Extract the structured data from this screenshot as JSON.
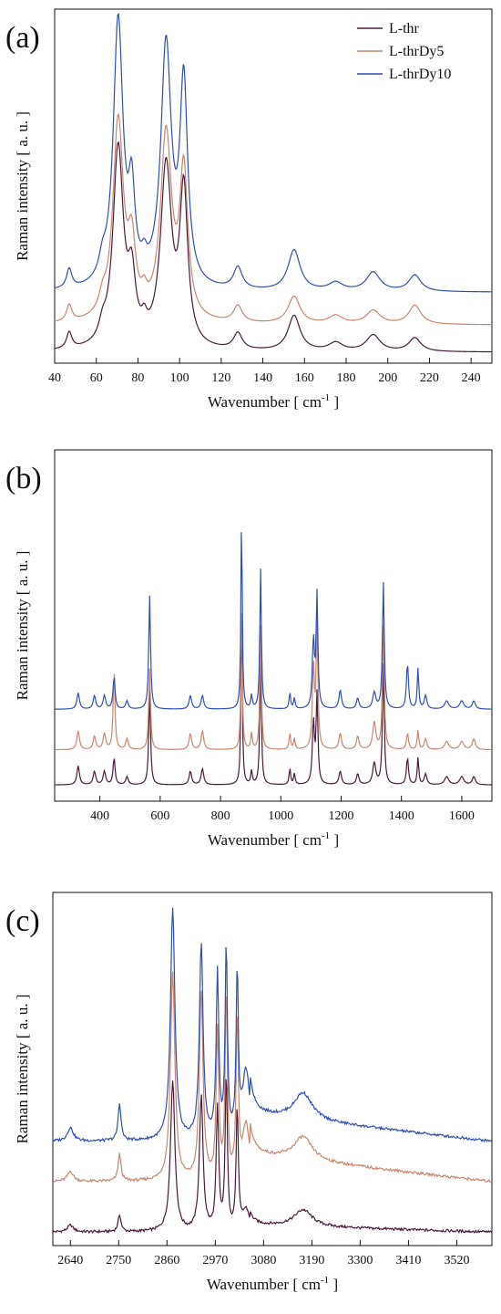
{
  "legend": [
    "L-thr",
    "L-thrDy5",
    "L-thrDy10"
  ],
  "colors": {
    "L-thr": "#4a1a3a",
    "L-thrDy5": "#c8876e",
    "L-thrDy10": "#2f4fb2"
  },
  "chart_data": [
    {
      "type": "line",
      "panel_label": "(a)",
      "xlabel": "Wavenumber [ cm-1 ]",
      "ylabel": "Raman intensity [ a. u. ]",
      "xlim": [
        40,
        250
      ],
      "xticks": [
        40,
        60,
        80,
        100,
        120,
        140,
        160,
        180,
        200,
        220,
        240
      ],
      "tick_labels": [
        "40",
        "60",
        "80",
        "100",
        "120",
        "140",
        "160",
        "180",
        "200",
        "220",
        "240"
      ],
      "legend_position": "top-right",
      "series": [
        {
          "name": "L-thr",
          "baseline": 0.04,
          "offset": 0.0,
          "peaks": [
            [
              47,
              0.06,
              1.5
            ],
            [
              63,
              0.05,
              2
            ],
            [
              70.5,
              0.73,
              3
            ],
            [
              77,
              0.22,
              2.2
            ],
            [
              83,
              0.05,
              1.5
            ],
            [
              93.5,
              0.66,
              3.2
            ],
            [
              102,
              0.56,
              2.3
            ],
            [
              128,
              0.06,
              2.5
            ],
            [
              155,
              0.13,
              3.5
            ],
            [
              175,
              0.03,
              4
            ],
            [
              193,
              0.06,
              4
            ],
            [
              213,
              0.05,
              3.5
            ]
          ]
        },
        {
          "name": "L-thrDy5",
          "baseline": 0.04,
          "offset": 0.1,
          "peaks": [
            [
              47,
              0.06,
              1.5
            ],
            [
              63,
              0.05,
              2
            ],
            [
              70.5,
              0.73,
              3
            ],
            [
              77,
              0.24,
              2.2
            ],
            [
              83,
              0.05,
              1.5
            ],
            [
              93.5,
              0.68,
              3.2
            ],
            [
              102,
              0.53,
              2.3
            ],
            [
              128,
              0.06,
              2.5
            ],
            [
              155,
              0.1,
              3.5
            ],
            [
              175,
              0.03,
              4
            ],
            [
              193,
              0.05,
              4
            ],
            [
              213,
              0.07,
              3.5
            ]
          ]
        },
        {
          "name": "L-thrDy10",
          "baseline": 0.04,
          "offset": 0.22,
          "peaks": [
            [
              47,
              0.07,
              1.5
            ],
            [
              63,
              0.06,
              2
            ],
            [
              70.5,
              0.98,
              2.8
            ],
            [
              77,
              0.3,
              1.8
            ],
            [
              83,
              0.05,
              1.5
            ],
            [
              93.5,
              0.88,
              3
            ],
            [
              102,
              0.73,
              2.2
            ],
            [
              128,
              0.08,
              2.5
            ],
            [
              155,
              0.15,
              3.5
            ],
            [
              175,
              0.03,
              4
            ],
            [
              193,
              0.07,
              4
            ],
            [
              213,
              0.06,
              3.5
            ]
          ]
        }
      ]
    },
    {
      "type": "line",
      "panel_label": "(b)",
      "xlabel": "Wavenumber [ cm-1 ]",
      "ylabel": "Raman intensity [ a. u. ]",
      "xlim": [
        250,
        1700
      ],
      "xticks": [
        400,
        600,
        800,
        1000,
        1200,
        1400,
        1600
      ],
      "tick_labels": [
        "400",
        "600",
        "800",
        "1000",
        "1200",
        "1400",
        "1600"
      ],
      "series": [
        {
          "name": "L-thr",
          "baseline": 0.06,
          "offset": 0.0,
          "peaks": [
            [
              328,
              0.07,
              5
            ],
            [
              382,
              0.05,
              5
            ],
            [
              415,
              0.05,
              5
            ],
            [
              447,
              0.1,
              4
            ],
            [
              490,
              0.03,
              5
            ],
            [
              565,
              0.35,
              3.5
            ],
            [
              700,
              0.05,
              5
            ],
            [
              740,
              0.06,
              5
            ],
            [
              870,
              0.7,
              2.5
            ],
            [
              903,
              0.05,
              3
            ],
            [
              933,
              0.5,
              3
            ],
            [
              1030,
              0.06,
              3
            ],
            [
              1045,
              0.04,
              3
            ],
            [
              1108,
              0.23,
              4
            ],
            [
              1120,
              0.33,
              3.5
            ],
            [
              1197,
              0.05,
              5
            ],
            [
              1255,
              0.04,
              5
            ],
            [
              1310,
              0.08,
              6
            ],
            [
              1340,
              0.45,
              3.5
            ],
            [
              1420,
              0.1,
              4
            ],
            [
              1455,
              0.1,
              3
            ],
            [
              1480,
              0.04,
              5
            ],
            [
              1550,
              0.03,
              8
            ],
            [
              1600,
              0.03,
              8
            ],
            [
              1640,
              0.03,
              6
            ]
          ]
        },
        {
          "name": "L-thrDy5",
          "baseline": 0.06,
          "offset": 0.13,
          "peaks": [
            [
              328,
              0.07,
              5
            ],
            [
              382,
              0.05,
              5
            ],
            [
              415,
              0.06,
              5
            ],
            [
              447,
              0.3,
              3.5
            ],
            [
              490,
              0.04,
              5
            ],
            [
              565,
              0.3,
              3.5
            ],
            [
              700,
              0.06,
              5
            ],
            [
              740,
              0.07,
              5
            ],
            [
              870,
              0.58,
              2.5
            ],
            [
              903,
              0.06,
              3
            ],
            [
              933,
              0.46,
              3
            ],
            [
              1030,
              0.06,
              3
            ],
            [
              1045,
              0.04,
              3
            ],
            [
              1108,
              0.3,
              4
            ],
            [
              1120,
              0.45,
              3.5
            ],
            [
              1197,
              0.06,
              5
            ],
            [
              1255,
              0.05,
              5
            ],
            [
              1310,
              0.1,
              6
            ],
            [
              1340,
              0.46,
              3.5
            ],
            [
              1420,
              0.06,
              4
            ],
            [
              1455,
              0.07,
              3
            ],
            [
              1480,
              0.04,
              5
            ],
            [
              1550,
              0.03,
              8
            ],
            [
              1600,
              0.03,
              8
            ],
            [
              1640,
              0.04,
              6
            ]
          ]
        },
        {
          "name": "L-thrDy10",
          "baseline": 0.06,
          "offset": 0.28,
          "peaks": [
            [
              328,
              0.06,
              5
            ],
            [
              382,
              0.05,
              5
            ],
            [
              415,
              0.05,
              5
            ],
            [
              447,
              0.12,
              4
            ],
            [
              490,
              0.03,
              5
            ],
            [
              565,
              0.42,
              3.5
            ],
            [
              700,
              0.05,
              5
            ],
            [
              740,
              0.05,
              5
            ],
            [
              870,
              0.75,
              2.5
            ],
            [
              903,
              0.05,
              3
            ],
            [
              933,
              0.52,
              3
            ],
            [
              1030,
              0.06,
              3
            ],
            [
              1045,
              0.04,
              3
            ],
            [
              1108,
              0.25,
              4
            ],
            [
              1120,
              0.42,
              3.5
            ],
            [
              1197,
              0.07,
              5
            ],
            [
              1255,
              0.04,
              5
            ],
            [
              1310,
              0.06,
              6
            ],
            [
              1340,
              0.47,
              3.5
            ],
            [
              1420,
              0.17,
              4
            ],
            [
              1455,
              0.15,
              3
            ],
            [
              1480,
              0.05,
              5
            ],
            [
              1550,
              0.03,
              8
            ],
            [
              1600,
              0.03,
              8
            ],
            [
              1640,
              0.03,
              6
            ]
          ]
        }
      ]
    },
    {
      "type": "line",
      "panel_label": "(c)",
      "xlabel": "Wavenumber [ cm-1 ]",
      "ylabel": "Raman intensity [ a. u. ]",
      "xlim": [
        2600,
        3600
      ],
      "xticks": [
        2640,
        2750,
        2860,
        2970,
        3080,
        3190,
        3300,
        3410,
        3520
      ],
      "tick_labels": [
        "2640",
        "2750",
        "2860",
        "2970",
        "3080",
        "3190",
        "3300",
        "3410",
        "3520"
      ],
      "series": [
        {
          "name": "L-thr",
          "baseline": 0.04,
          "offset": 0.0,
          "peaks": [
            [
              2640,
              0.02,
              8
            ],
            [
              2752,
              0.05,
              4
            ],
            [
              2873,
              0.45,
              6
            ],
            [
              2938,
              0.4,
              5
            ],
            [
              2975,
              0.36,
              3.5
            ],
            [
              2995,
              0.46,
              3
            ],
            [
              3020,
              0.36,
              3
            ],
            [
              3040,
              0.06,
              10
            ],
            [
              3170,
              0.05,
              25
            ]
          ],
          "tail": [
            3050,
            0.02,
            3600,
            0.0
          ]
        },
        {
          "name": "L-thrDy5",
          "baseline": 0.08,
          "offset": 0.11,
          "peaks": [
            [
              2640,
              0.03,
              8
            ],
            [
              2752,
              0.08,
              4
            ],
            [
              2873,
              0.62,
              6
            ],
            [
              2938,
              0.56,
              5
            ],
            [
              2975,
              0.44,
              3.5
            ],
            [
              2995,
              0.55,
              3
            ],
            [
              3020,
              0.47,
              3
            ],
            [
              3040,
              0.16,
              10
            ],
            [
              3170,
              0.07,
              25
            ]
          ],
          "tail": [
            3050,
            0.08,
            3600,
            0.0
          ]
        },
        {
          "name": "L-thrDy10",
          "baseline": 0.04,
          "offset": 0.27,
          "peaks": [
            [
              2640,
              0.04,
              8
            ],
            [
              2752,
              0.11,
              4
            ],
            [
              2873,
              0.69,
              6
            ],
            [
              2938,
              0.58,
              5
            ],
            [
              2975,
              0.49,
              3.5
            ],
            [
              2995,
              0.57,
              3
            ],
            [
              3020,
              0.48,
              3
            ],
            [
              3040,
              0.2,
              10
            ],
            [
              3170,
              0.08,
              25
            ]
          ],
          "tail": [
            3050,
            0.08,
            3600,
            0.0
          ]
        }
      ]
    }
  ]
}
